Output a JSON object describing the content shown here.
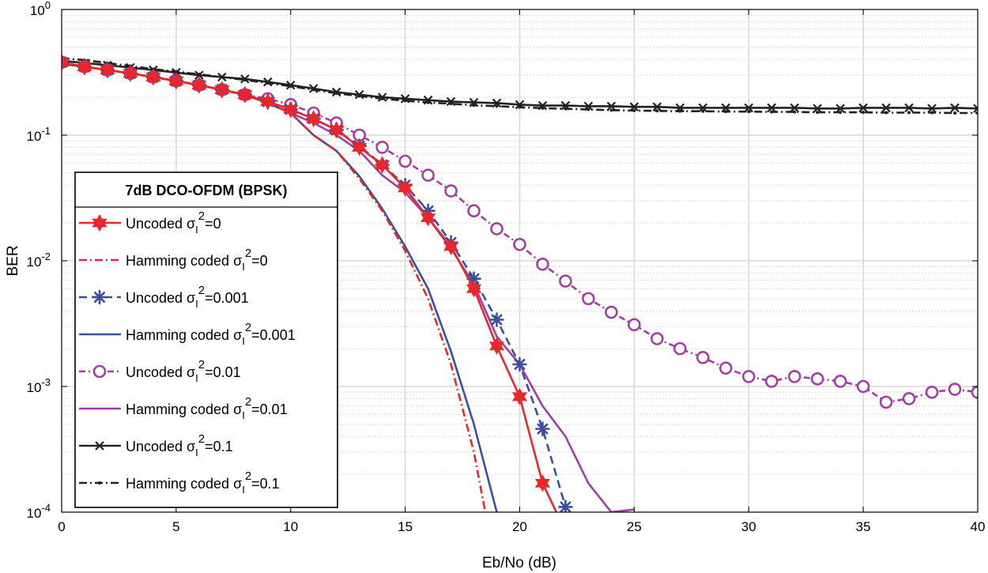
{
  "chart_data": {
    "type": "line",
    "xlabel": "Eb/No (dB)",
    "ylabel": "BER",
    "xlim": [
      0,
      40
    ],
    "ylim": [
      0.0001,
      1
    ],
    "yscale": "log",
    "grid": true,
    "x_ticks": [
      0,
      5,
      10,
      15,
      20,
      25,
      30,
      35,
      40
    ],
    "x_tick_labels": [
      "0",
      "5",
      "10",
      "15",
      "20",
      "25",
      "30",
      "35",
      "40"
    ],
    "y_ticks": [
      {
        "value": 1,
        "base": "10",
        "exp": "0"
      },
      {
        "value": 0.1,
        "base": "10",
        "exp": "-1"
      },
      {
        "value": 0.01,
        "base": "10",
        "exp": "-2"
      },
      {
        "value": 0.001,
        "base": "10",
        "exp": "-3"
      },
      {
        "value": 0.0001,
        "base": "10",
        "exp": "-4"
      }
    ],
    "legend": {
      "placement": "left",
      "title": "7dB DCO-OFDM (BPSK)",
      "entries": [
        {
          "text": "Uncoded σ",
          "sub": "I",
          "sup": "2",
          "suffix": "=0"
        },
        {
          "text": "Hamming coded σ",
          "sub": "I",
          "sup": "2",
          "suffix": "=0"
        },
        {
          "text": "Uncoded σ",
          "sub": "I",
          "sup": "2",
          "suffix": "=0.001"
        },
        {
          "text": "Hamming coded σ",
          "sub": "I",
          "sup": "2",
          "suffix": "=0.001"
        },
        {
          "text": "Uncoded σ",
          "sub": "I",
          "sup": "2",
          "suffix": "=0.01"
        },
        {
          "text": "Hamming coded σ",
          "sub": "I",
          "sup": "2",
          "suffix": "=0.01"
        },
        {
          "text": "Uncoded σ",
          "sub": "I",
          "sup": "2",
          "suffix": "=0.1"
        },
        {
          "text": "Hamming coded σ",
          "sub": "I",
          "sup": "2",
          "suffix": "=0.1"
        }
      ]
    },
    "series": [
      {
        "color": "#e8262b",
        "dash": "",
        "marker": "hexagram",
        "x": [
          0,
          1,
          2,
          3,
          4,
          5,
          6,
          7,
          8,
          9,
          10,
          11,
          12,
          13,
          14,
          15,
          16,
          17,
          18,
          19,
          20,
          21,
          21.6
        ],
        "y": [
          0.38,
          0.35,
          0.33,
          0.31,
          0.29,
          0.27,
          0.25,
          0.23,
          0.21,
          0.185,
          0.16,
          0.135,
          0.11,
          0.08,
          0.058,
          0.038,
          0.022,
          0.013,
          0.006,
          0.0021,
          0.00083,
          0.00017,
          0.0001
        ]
      },
      {
        "color": "#e8262b",
        "dash": "10,4,2,4",
        "marker": "none",
        "x": [
          0,
          1,
          2,
          3,
          4,
          5,
          6,
          7,
          8,
          9,
          10,
          11,
          12,
          13,
          14,
          15,
          16,
          17,
          18,
          18.5
        ],
        "y": [
          0.37,
          0.35,
          0.33,
          0.31,
          0.29,
          0.27,
          0.25,
          0.23,
          0.21,
          0.18,
          0.15,
          0.1,
          0.075,
          0.045,
          0.025,
          0.012,
          0.005,
          0.0015,
          0.0003,
          0.0001
        ]
      },
      {
        "color": "#3a4f9f",
        "dash": "10,6",
        "marker": "asterisk",
        "x": [
          0,
          1,
          2,
          3,
          4,
          5,
          6,
          7,
          8,
          9,
          10,
          11,
          12,
          13,
          14,
          15,
          16,
          17,
          18,
          19,
          20,
          21,
          22
        ],
        "y": [
          0.38,
          0.35,
          0.33,
          0.31,
          0.29,
          0.27,
          0.25,
          0.23,
          0.21,
          0.185,
          0.16,
          0.135,
          0.11,
          0.082,
          0.058,
          0.04,
          0.025,
          0.014,
          0.0072,
          0.0034,
          0.0015,
          0.00046,
          0.00011
        ]
      },
      {
        "color": "#3a4f9f",
        "dash": "",
        "marker": "none",
        "x": [
          0,
          1,
          2,
          3,
          4,
          5,
          6,
          7,
          8,
          9,
          10,
          11,
          12,
          13,
          14,
          15,
          16,
          17,
          18,
          19
        ],
        "y": [
          0.37,
          0.35,
          0.33,
          0.31,
          0.29,
          0.27,
          0.25,
          0.23,
          0.21,
          0.18,
          0.15,
          0.1,
          0.075,
          0.047,
          0.026,
          0.013,
          0.006,
          0.0019,
          0.0005,
          0.0001
        ]
      },
      {
        "color": "#a33fa3",
        "dash": "8,4,2,4",
        "marker": "circle",
        "x": [
          0,
          1,
          2,
          3,
          4,
          5,
          6,
          7,
          8,
          9,
          10,
          11,
          12,
          13,
          14,
          15,
          16,
          17,
          18,
          19,
          20,
          21,
          22,
          23,
          24,
          25,
          26,
          27,
          28,
          29,
          30,
          31,
          32,
          33,
          34,
          35,
          36,
          37,
          38,
          39,
          40
        ],
        "y": [
          0.38,
          0.35,
          0.33,
          0.31,
          0.29,
          0.27,
          0.25,
          0.23,
          0.21,
          0.195,
          0.175,
          0.15,
          0.125,
          0.1,
          0.08,
          0.062,
          0.048,
          0.036,
          0.025,
          0.018,
          0.0135,
          0.0094,
          0.0069,
          0.005,
          0.0039,
          0.0031,
          0.0024,
          0.002,
          0.0017,
          0.0014,
          0.0012,
          0.0011,
          0.0012,
          0.00115,
          0.0011,
          0.001,
          0.00075,
          0.0008,
          0.0009,
          0.00095,
          0.0009
        ]
      },
      {
        "color": "#a33fa3",
        "dash": "",
        "marker": "none",
        "x": [
          0,
          1,
          2,
          3,
          4,
          5,
          6,
          7,
          8,
          9,
          10,
          11,
          12,
          13,
          14,
          15,
          16,
          17,
          18,
          19,
          20,
          21,
          22,
          23,
          24,
          25
        ],
        "y": [
          0.37,
          0.35,
          0.33,
          0.31,
          0.29,
          0.27,
          0.25,
          0.23,
          0.21,
          0.18,
          0.15,
          0.125,
          0.1,
          0.075,
          0.048,
          0.035,
          0.022,
          0.0125,
          0.0065,
          0.0025,
          0.0015,
          0.0007,
          0.0004,
          0.00017,
          0.0001,
          0.000105
        ]
      },
      {
        "color": "#222222",
        "dash": "",
        "marker": "x",
        "x": [
          0,
          1,
          2,
          3,
          4,
          5,
          6,
          7,
          8,
          9,
          10,
          11,
          12,
          13,
          14,
          15,
          16,
          17,
          18,
          19,
          20,
          21,
          22,
          23,
          24,
          25,
          26,
          27,
          28,
          29,
          30,
          31,
          32,
          33,
          34,
          35,
          36,
          37,
          38,
          39,
          40
        ],
        "y": [
          0.39,
          0.375,
          0.36,
          0.345,
          0.33,
          0.315,
          0.3,
          0.29,
          0.28,
          0.265,
          0.25,
          0.235,
          0.22,
          0.21,
          0.2,
          0.195,
          0.19,
          0.185,
          0.182,
          0.18,
          0.175,
          0.172,
          0.172,
          0.17,
          0.17,
          0.168,
          0.168,
          0.165,
          0.165,
          0.165,
          0.165,
          0.165,
          0.165,
          0.163,
          0.163,
          0.165,
          0.165,
          0.165,
          0.163,
          0.165,
          0.163
        ]
      },
      {
        "color": "#222222",
        "dash": "10,4,2,4",
        "marker": "dot",
        "x": [
          0,
          1,
          2,
          3,
          4,
          5,
          6,
          7,
          8,
          9,
          10,
          11,
          12,
          13,
          14,
          15,
          16,
          17,
          18,
          19,
          20,
          21,
          22,
          23,
          24,
          25,
          26,
          27,
          28,
          29,
          30,
          31,
          32,
          33,
          34,
          35,
          36,
          37,
          38,
          39,
          40
        ],
        "y": [
          0.41,
          0.395,
          0.375,
          0.355,
          0.335,
          0.32,
          0.305,
          0.29,
          0.275,
          0.26,
          0.245,
          0.23,
          0.215,
          0.205,
          0.195,
          0.188,
          0.182,
          0.178,
          0.173,
          0.17,
          0.167,
          0.164,
          0.162,
          0.16,
          0.158,
          0.157,
          0.156,
          0.155,
          0.155,
          0.154,
          0.154,
          0.153,
          0.153,
          0.152,
          0.152,
          0.152,
          0.151,
          0.151,
          0.151,
          0.15,
          0.15
        ]
      }
    ]
  }
}
